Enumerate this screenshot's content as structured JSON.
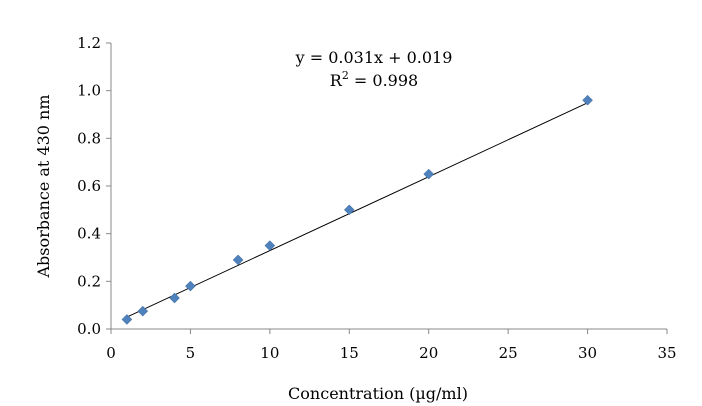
{
  "chart_data": {
    "type": "scatter",
    "xlabel": "Concentration (µg/ml)",
    "ylabel": "Absorbance at 430 nm",
    "xlim": [
      0,
      35
    ],
    "ylim": [
      0,
      1.2
    ],
    "x_ticks": [
      "0",
      "5",
      "10",
      "15",
      "20",
      "25",
      "30",
      "35"
    ],
    "y_ticks": [
      "0.0",
      "0.2",
      "0.4",
      "0.6",
      "0.8",
      "1.0",
      "1.2"
    ],
    "grid": false,
    "legend": "none",
    "series": [
      {
        "marker": "diamond",
        "color": "#4F81BD",
        "x": [
          1,
          2,
          4,
          5,
          8,
          10,
          15,
          20,
          30
        ],
        "y": [
          0.04,
          0.075,
          0.13,
          0.18,
          0.29,
          0.35,
          0.5,
          0.65,
          0.96
        ]
      }
    ],
    "trendline": {
      "type": "linear",
      "slope": 0.031,
      "intercept": 0.019,
      "x_range": [
        1,
        30
      ],
      "color": "#000000"
    },
    "annotations": {
      "equation": "y = 0.031x + 0.019",
      "r_squared_prefix": "R",
      "r_squared_sup": "2",
      "r_squared_value": " = 0.998"
    }
  }
}
